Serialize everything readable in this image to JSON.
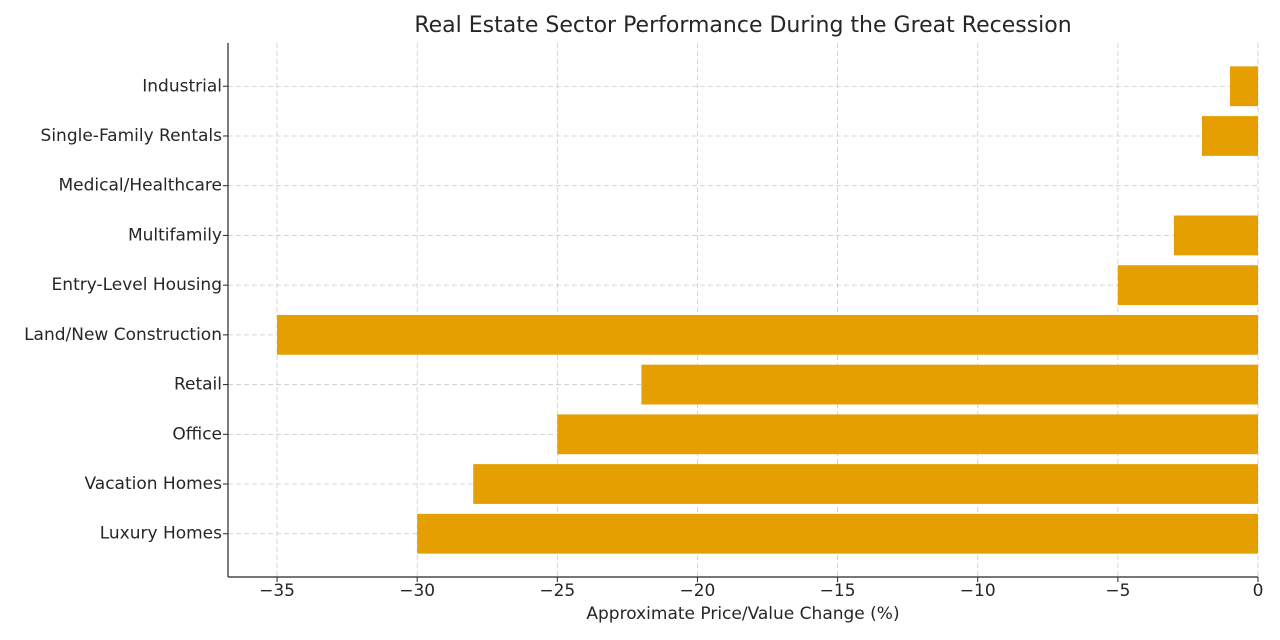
{
  "chart_data": {
    "type": "barh",
    "title": "Real Estate Sector Performance During the Great Recession",
    "x_label": "Approximate Price/Value Change (%)",
    "categories": [
      "Luxury Homes",
      "Vacation Homes",
      "Office",
      "Retail",
      "Land/New Construction",
      "Entry-Level Housing",
      "Multifamily",
      "Medical/Healthcare",
      "Single-Family Rentals",
      "Industrial"
    ],
    "values": [
      -30,
      -28,
      -25,
      -22,
      -35,
      -5,
      -3,
      0,
      -2,
      -1
    ],
    "color": "#e69f00",
    "xlim": [
      -36.75,
      0
    ],
    "xticks": [
      {
        "value": -35,
        "label": "−35"
      },
      {
        "value": -30,
        "label": "−30"
      },
      {
        "value": -25,
        "label": "−25"
      },
      {
        "value": -20,
        "label": "−20"
      },
      {
        "value": -15,
        "label": "−15"
      },
      {
        "value": -10,
        "label": "−10"
      },
      {
        "value": -5,
        "label": "−5"
      },
      0
    ],
    "grid": true
  }
}
